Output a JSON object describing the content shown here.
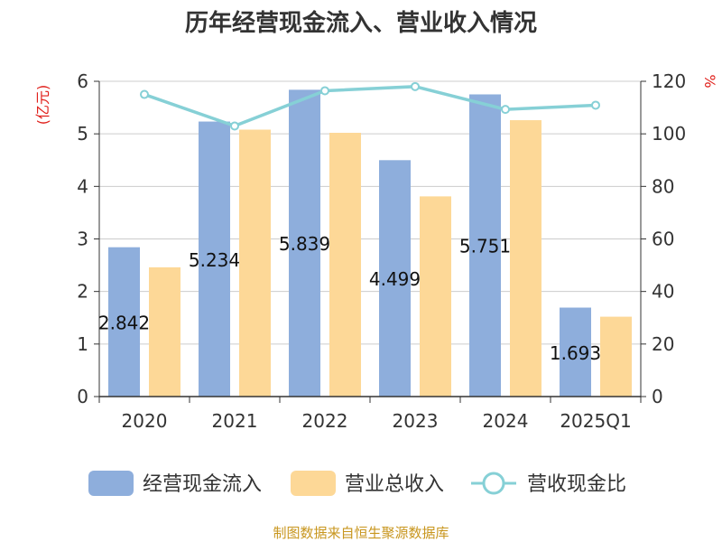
{
  "chart_data": {
    "type": "bar",
    "title": "历年经营现金流入、营业收入情况",
    "categories": [
      "2020",
      "2021",
      "2022",
      "2023",
      "2024",
      "2025Q1"
    ],
    "series": [
      {
        "name": "经营现金流入",
        "type": "bar",
        "axis": "left",
        "color": "#8eaedc",
        "values": [
          2.842,
          5.234,
          5.839,
          4.499,
          5.751,
          1.693
        ],
        "labels": [
          "2.842",
          "5.234",
          "5.839",
          "4.499",
          "5.751",
          "1.693"
        ]
      },
      {
        "name": "营业总收入",
        "type": "bar",
        "axis": "left",
        "color": "#fdd897",
        "values": [
          2.46,
          5.08,
          5.02,
          3.81,
          5.26,
          1.52
        ]
      },
      {
        "name": "营收现金比",
        "type": "line",
        "axis": "right",
        "color": "#86d0d6",
        "values": [
          115.0,
          103.0,
          116.4,
          118.0,
          109.3,
          110.9
        ]
      }
    ],
    "y_left": {
      "label": "(亿元)",
      "min": 0,
      "max": 6,
      "ticks": [
        "0",
        "1",
        "2",
        "3",
        "4",
        "5",
        "6"
      ]
    },
    "y_right": {
      "label": "%",
      "min": 0,
      "max": 120,
      "ticks": [
        "0",
        "20",
        "40",
        "60",
        "80",
        "100",
        "120"
      ]
    },
    "grid": true,
    "legend_position": "bottom"
  },
  "source_text": "制图数据来自恒生聚源数据库"
}
